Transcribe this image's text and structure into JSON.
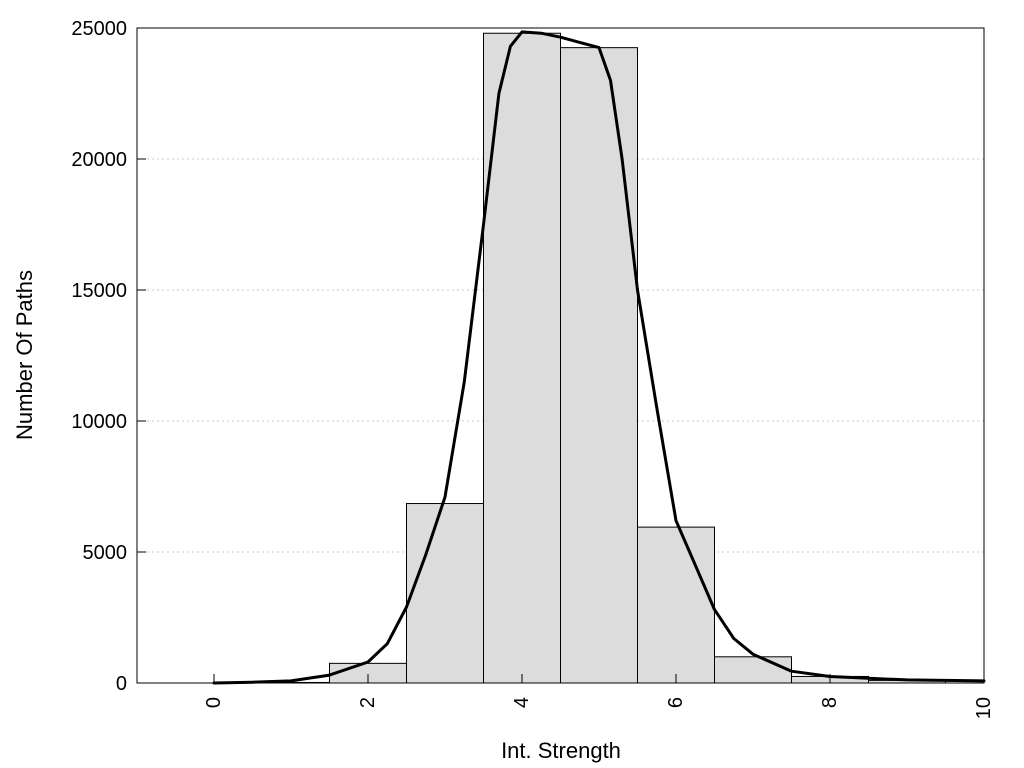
{
  "chart_data": {
    "type": "bar",
    "xlabel": "Int. Strength",
    "ylabel": "Number Of Paths",
    "xlim": [
      -1,
      10
    ],
    "ylim": [
      0,
      25000
    ],
    "x_ticks": [
      0,
      2,
      4,
      6,
      8,
      10
    ],
    "y_ticks": [
      0,
      5000,
      10000,
      15000,
      20000,
      25000
    ],
    "x_tick_rotation": -90,
    "grid": "horizontal-dotted",
    "legend": "none",
    "bin_width": 1,
    "bars": {
      "x": [
        0,
        1,
        2,
        3,
        4,
        5,
        6,
        7,
        8,
        9
      ],
      "values": [
        0,
        20,
        750,
        6850,
        24800,
        24250,
        5950,
        1000,
        250,
        100
      ],
      "fill": "#dcdcdc",
      "edge": "#000000"
    },
    "curve": {
      "color": "#000000",
      "x": [
        0,
        0.5,
        1,
        1.5,
        2,
        2.25,
        2.5,
        2.75,
        3,
        3.25,
        3.5,
        3.7,
        3.85,
        4,
        4.25,
        4.5,
        4.75,
        5,
        5.15,
        5.3,
        5.5,
        5.75,
        6,
        6.25,
        6.5,
        6.75,
        7,
        7.5,
        8,
        8.5,
        9,
        9.5,
        10
      ],
      "y": [
        0,
        30,
        80,
        300,
        800,
        1500,
        2900,
        4900,
        7100,
        11500,
        17500,
        22500,
        24300,
        24850,
        24800,
        24650,
        24450,
        24250,
        23000,
        20000,
        15000,
        10500,
        6200,
        4500,
        2800,
        1700,
        1100,
        450,
        250,
        180,
        120,
        100,
        80
      ]
    }
  }
}
